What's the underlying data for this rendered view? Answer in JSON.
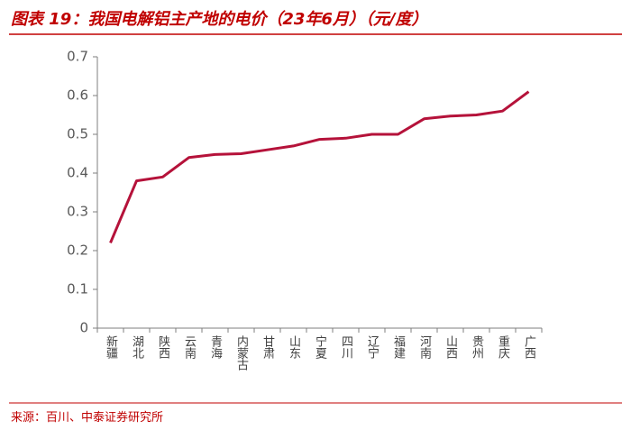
{
  "chart_data": {
    "type": "line",
    "title": "图表 19：我国电解铝主产地的电价（23年6月）（元/度）",
    "source": "来源：百川、中泰证券研究所",
    "categories": [
      "新疆",
      "湖北",
      "陕西",
      "云南",
      "青海",
      "内蒙古",
      "甘肃",
      "山东",
      "宁夏",
      "四川",
      "辽宁",
      "福建",
      "河南",
      "山西",
      "贵州",
      "重庆",
      "广西"
    ],
    "values": [
      0.22,
      0.38,
      0.39,
      0.44,
      0.448,
      0.45,
      0.46,
      0.47,
      0.487,
      0.49,
      0.5,
      0.5,
      0.54,
      0.547,
      0.55,
      0.56,
      0.61
    ],
    "color": "#b5123a",
    "ylim": [
      0,
      0.7
    ],
    "yticks": [
      0,
      0.1,
      0.2,
      0.3,
      0.4,
      0.5,
      0.6,
      0.7
    ],
    "grid": false
  }
}
